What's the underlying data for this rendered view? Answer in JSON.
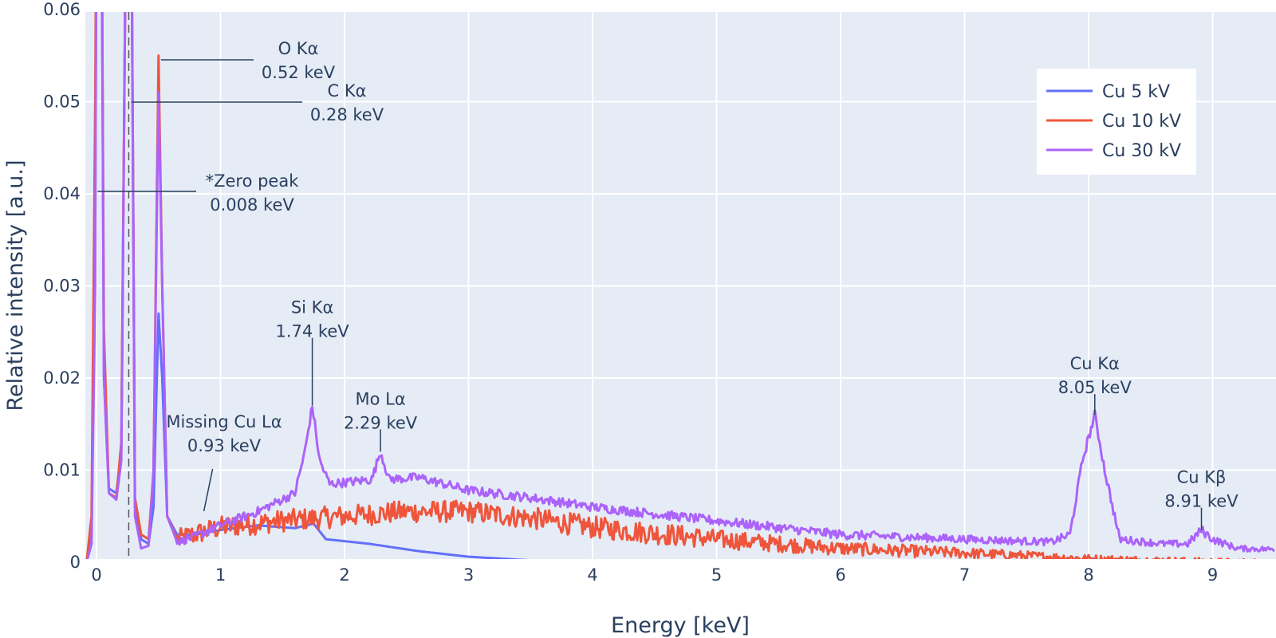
{
  "chart_data": {
    "type": "line",
    "title": "",
    "xlabel": "Energy [keV]",
    "ylabel": "Relative intensity [a.u.]",
    "xlim": [
      -0.1,
      9.5
    ],
    "ylim": [
      -0.001,
      0.06
    ],
    "x_ticks": [
      0,
      1,
      2,
      3,
      4,
      5,
      6,
      7,
      8,
      9
    ],
    "x_tick_labels": [
      "0",
      "1",
      "2",
      "3",
      "4",
      "5",
      "6",
      "7",
      "8",
      "9"
    ],
    "y_ticks": [
      0,
      0.01,
      0.02,
      0.03,
      0.04,
      0.05,
      0.06
    ],
    "y_tick_labels": [
      "0",
      "0.01",
      "0.02",
      "0.03",
      "0.04",
      "0.05",
      "0.06"
    ],
    "grid": true,
    "legend_position": "top-right",
    "reference_lines": [
      {
        "x": 0.26,
        "style": "dashed",
        "color": "#555555"
      }
    ],
    "series": [
      {
        "name": "Cu 5 kV",
        "color": "#636efa",
        "points": [
          [
            -0.08,
            0
          ],
          [
            -0.04,
            0.003
          ],
          [
            -0.01,
            0.035
          ],
          [
            0.0,
            0.075
          ],
          [
            0.04,
            0.075
          ],
          [
            0.06,
            0.02
          ],
          [
            0.1,
            0.008
          ],
          [
            0.16,
            0.0075
          ],
          [
            0.2,
            0.012
          ],
          [
            0.24,
            0.075
          ],
          [
            0.28,
            0.075
          ],
          [
            0.31,
            0.006
          ],
          [
            0.36,
            0.0025
          ],
          [
            0.42,
            0.002
          ],
          [
            0.46,
            0.006
          ],
          [
            0.5,
            0.027
          ],
          [
            0.53,
            0.02
          ],
          [
            0.57,
            0.005
          ],
          [
            0.65,
            0.003
          ],
          [
            0.8,
            0.003
          ],
          [
            1.0,
            0.0035
          ],
          [
            1.3,
            0.004
          ],
          [
            1.6,
            0.0037
          ],
          [
            1.75,
            0.0042
          ],
          [
            1.85,
            0.0025
          ],
          [
            2.2,
            0.002
          ],
          [
            2.6,
            0.0012
          ],
          [
            3.0,
            0.0006
          ],
          [
            3.5,
            0.0002
          ],
          [
            4.0,
            0.0
          ],
          [
            5.0,
            0.0
          ],
          [
            6.0,
            0.0
          ],
          [
            7.0,
            0.0
          ],
          [
            8.0,
            0.0
          ],
          [
            9.5,
            0.0
          ]
        ]
      },
      {
        "name": "Cu 10 kV",
        "color": "#ef553b",
        "noise": 0.0012,
        "points": [
          [
            -0.08,
            0
          ],
          [
            -0.04,
            0.005
          ],
          [
            -0.01,
            0.05
          ],
          [
            0.0,
            0.075
          ],
          [
            0.04,
            0.075
          ],
          [
            0.06,
            0.025
          ],
          [
            0.1,
            0.0075
          ],
          [
            0.16,
            0.007
          ],
          [
            0.2,
            0.013
          ],
          [
            0.24,
            0.075
          ],
          [
            0.28,
            0.075
          ],
          [
            0.31,
            0.007
          ],
          [
            0.36,
            0.003
          ],
          [
            0.42,
            0.0025
          ],
          [
            0.46,
            0.01
          ],
          [
            0.5,
            0.055
          ],
          [
            0.53,
            0.03
          ],
          [
            0.57,
            0.005
          ],
          [
            0.65,
            0.0025
          ],
          [
            1.0,
            0.0038
          ],
          [
            1.5,
            0.0045
          ],
          [
            2.0,
            0.005
          ],
          [
            2.5,
            0.0055
          ],
          [
            3.0,
            0.0055
          ],
          [
            3.5,
            0.0048
          ],
          [
            4.0,
            0.0038
          ],
          [
            5.0,
            0.0025
          ],
          [
            6.0,
            0.0015
          ],
          [
            7.0,
            0.001
          ],
          [
            8.0,
            0.0004
          ],
          [
            9.0,
            0.0001
          ],
          [
            9.5,
            0.0
          ]
        ]
      },
      {
        "name": "Cu 30 kV",
        "color": "#ab63fa",
        "noise": 0.0005,
        "points": [
          [
            -0.08,
            0
          ],
          [
            -0.04,
            0.002
          ],
          [
            -0.01,
            0.03
          ],
          [
            0.0,
            0.075
          ],
          [
            0.04,
            0.075
          ],
          [
            0.06,
            0.02
          ],
          [
            0.1,
            0.0075
          ],
          [
            0.16,
            0.0068
          ],
          [
            0.2,
            0.011
          ],
          [
            0.24,
            0.075
          ],
          [
            0.28,
            0.075
          ],
          [
            0.31,
            0.005
          ],
          [
            0.36,
            0.0015
          ],
          [
            0.42,
            0.0018
          ],
          [
            0.46,
            0.01
          ],
          [
            0.5,
            0.051
          ],
          [
            0.53,
            0.03
          ],
          [
            0.57,
            0.005
          ],
          [
            0.65,
            0.0022
          ],
          [
            0.8,
            0.0028
          ],
          [
            1.0,
            0.004
          ],
          [
            1.3,
            0.0055
          ],
          [
            1.6,
            0.0075
          ],
          [
            1.68,
            0.012
          ],
          [
            1.74,
            0.017
          ],
          [
            1.8,
            0.011
          ],
          [
            1.88,
            0.0085
          ],
          [
            2.1,
            0.0088
          ],
          [
            2.22,
            0.009
          ],
          [
            2.29,
            0.012
          ],
          [
            2.36,
            0.009
          ],
          [
            2.6,
            0.0092
          ],
          [
            3.0,
            0.0078
          ],
          [
            3.5,
            0.007
          ],
          [
            4.0,
            0.006
          ],
          [
            5.0,
            0.0045
          ],
          [
            6.0,
            0.003
          ],
          [
            7.0,
            0.0025
          ],
          [
            7.7,
            0.0022
          ],
          [
            7.85,
            0.003
          ],
          [
            7.95,
            0.011
          ],
          [
            8.05,
            0.016
          ],
          [
            8.13,
            0.01
          ],
          [
            8.25,
            0.0025
          ],
          [
            8.6,
            0.002
          ],
          [
            8.8,
            0.002
          ],
          [
            8.91,
            0.0035
          ],
          [
            9.0,
            0.0025
          ],
          [
            9.2,
            0.0015
          ],
          [
            9.5,
            0.0014
          ]
        ]
      }
    ],
    "annotations": [
      {
        "lines": [
          "O Kα",
          "0.52 keV"
        ],
        "x": 0.52,
        "y": 0.0545,
        "pointer": "horizontal"
      },
      {
        "lines": [
          "C Kα",
          "0.28 keV"
        ],
        "x": 0.28,
        "y": 0.05,
        "pointer": "horizontal"
      },
      {
        "lines": [
          "*Zero peak",
          "0.008 keV"
        ],
        "x": 0.008,
        "y": 0.04,
        "pointer": "horizontal"
      },
      {
        "lines": [
          "Si Kα",
          "1.74 keV"
        ],
        "x": 1.74,
        "y": 0.017,
        "pointer": "vertical"
      },
      {
        "lines": [
          "Mo Lα",
          "2.29 keV"
        ],
        "x": 2.29,
        "y": 0.012,
        "pointer": "vertical"
      },
      {
        "lines": [
          "Missing Cu Lα",
          "0.93 keV"
        ],
        "x": 0.93,
        "y": 0.0045,
        "pointer": "diagonal"
      },
      {
        "lines": [
          "Cu Kα",
          "8.05 keV"
        ],
        "x": 8.05,
        "y": 0.016,
        "pointer": "vertical"
      },
      {
        "lines": [
          "Cu Kβ",
          "8.91 keV"
        ],
        "x": 8.91,
        "y": 0.0035,
        "pointer": "vertical"
      }
    ]
  }
}
